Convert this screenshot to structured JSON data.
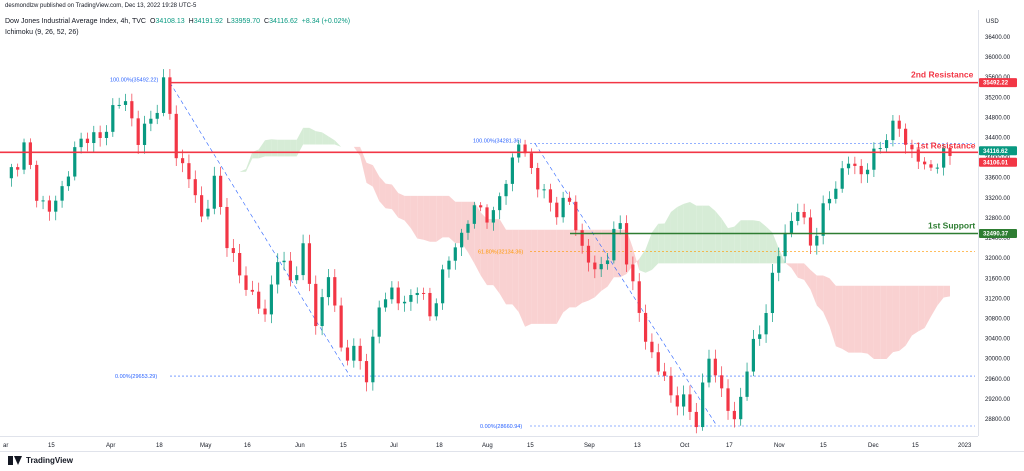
{
  "header": {
    "published": "desmondlzw published on TradingView.com, Dec 13, 2022 19:28 UTC-5",
    "symbol": "Dow Jones Industrial Average Index, 4h, TVC",
    "ohlc": [
      {
        "label": "O",
        "value": "34108.13"
      },
      {
        "label": "H",
        "value": "34191.92"
      },
      {
        "label": "L",
        "value": "33959.70"
      },
      {
        "label": "C",
        "value": "34116.62"
      },
      {
        "label": "",
        "value": "+8.34 (+0.02%)"
      }
    ],
    "indicator": "Ichimoku (9, 26, 52, 26)",
    "currency": "USD"
  },
  "footer": {
    "brand": "TradingView"
  },
  "chart_data": {
    "type": "candlestick",
    "x_axis_labels": [
      "ar",
      "15",
      "Apr",
      "18",
      "May",
      "16",
      "Jun",
      "15",
      "Jul",
      "18",
      "Aug",
      "15",
      "Sep",
      "13",
      "Oct",
      "17",
      "Nov",
      "15",
      "Dec",
      "15",
      "2023"
    ],
    "y_axis_labels": [
      "36400.00",
      "36000.00",
      "35600.00",
      "35200.00",
      "34800.00",
      "34400.00",
      "34000.00",
      "33600.00",
      "33200.00",
      "32800.00",
      "32400.00",
      "32000.00",
      "31600.00",
      "31200.00",
      "30800.00",
      "30400.00",
      "30000.00",
      "29600.00",
      "29200.00",
      "28800.00"
    ],
    "ylim": [
      28560,
      36700
    ],
    "price_anchors": [
      [
        0,
        33500
      ],
      [
        3,
        34200
      ],
      [
        5,
        33300
      ],
      [
        7,
        32900
      ],
      [
        9,
        33400
      ],
      [
        11,
        34100
      ],
      [
        13,
        34500
      ],
      [
        15,
        34300
      ],
      [
        17,
        35000
      ],
      [
        19,
        35100
      ],
      [
        21,
        34400
      ],
      [
        23,
        34700
      ],
      [
        25,
        35492
      ],
      [
        27,
        34100
      ],
      [
        29,
        33600
      ],
      [
        31,
        32800
      ],
      [
        33,
        33500
      ],
      [
        35,
        32400
      ],
      [
        37,
        31600
      ],
      [
        39,
        31300
      ],
      [
        41,
        30800
      ],
      [
        43,
        32100
      ],
      [
        45,
        31500
      ],
      [
        47,
        32200
      ],
      [
        49,
        30700
      ],
      [
        51,
        31700
      ],
      [
        53,
        30200
      ],
      [
        55,
        30100
      ],
      [
        57,
        29700
      ],
      [
        59,
        31000
      ],
      [
        61,
        31400
      ],
      [
        63,
        31000
      ],
      [
        65,
        31500
      ],
      [
        67,
        30800
      ],
      [
        69,
        31700
      ],
      [
        71,
        32200
      ],
      [
        73,
        32800
      ],
      [
        75,
        33000
      ],
      [
        77,
        32800
      ],
      [
        79,
        33600
      ],
      [
        81,
        34281
      ],
      [
        83,
        33800
      ],
      [
        85,
        33200
      ],
      [
        87,
        33000
      ],
      [
        89,
        33100
      ],
      [
        91,
        32200
      ],
      [
        93,
        31700
      ],
      [
        95,
        32100
      ],
      [
        97,
        32700
      ],
      [
        99,
        31400
      ],
      [
        101,
        30400
      ],
      [
        103,
        29800
      ],
      [
        105,
        29300
      ],
      [
        107,
        29100
      ],
      [
        109,
        28800
      ],
      [
        111,
        30000
      ],
      [
        113,
        29400
      ],
      [
        115,
        28660
      ],
      [
        117,
        29900
      ],
      [
        119,
        30500
      ],
      [
        121,
        31600
      ],
      [
        123,
        32500
      ],
      [
        125,
        33000
      ],
      [
        127,
        32300
      ],
      [
        129,
        32900
      ],
      [
        131,
        33500
      ],
      [
        133,
        33900
      ],
      [
        135,
        33700
      ],
      [
        137,
        34000
      ],
      [
        139,
        34500
      ],
      [
        141,
        34600
      ],
      [
        143,
        34100
      ],
      [
        145,
        33800
      ],
      [
        147,
        33900
      ],
      [
        149,
        34100
      ]
    ],
    "fibonacci": {
      "upper": {
        "label": "100.00%(35492.22)",
        "price": 35492.22
      },
      "lower": {
        "label": "0.00%(29653.29)",
        "price": 29653.29
      },
      "mid": {
        "label": "100.00%(34281.36)",
        "price": 34281.36
      },
      "retrace": {
        "label": "61.80%(32134.36)",
        "price": 32134.36
      },
      "low2": {
        "label": "0.00%(28660.94)",
        "price": 28660.94
      }
    },
    "levels": [
      {
        "name": "2nd Resistance",
        "price": 35492.22,
        "color": "#f23645"
      },
      {
        "name": "1st Resistance",
        "price": 34106.01,
        "color": "#f23645"
      },
      {
        "name": "1st Support",
        "price": 32490.37,
        "color": "#2e7d32"
      }
    ],
    "price_tags": [
      {
        "text": "35492.22",
        "color": "#f23645"
      },
      {
        "text": "34116.62",
        "color": "#089981"
      },
      {
        "text": "34106.01",
        "color": "#f23645"
      },
      {
        "text": "32490.37",
        "color": "#2e7d32"
      }
    ],
    "last_price": 34116.62,
    "colors": {
      "up": "#089981",
      "down": "#f23645",
      "cloud_bull": "#cfe9cf",
      "cloud_bear": "#f8c9c9"
    }
  }
}
